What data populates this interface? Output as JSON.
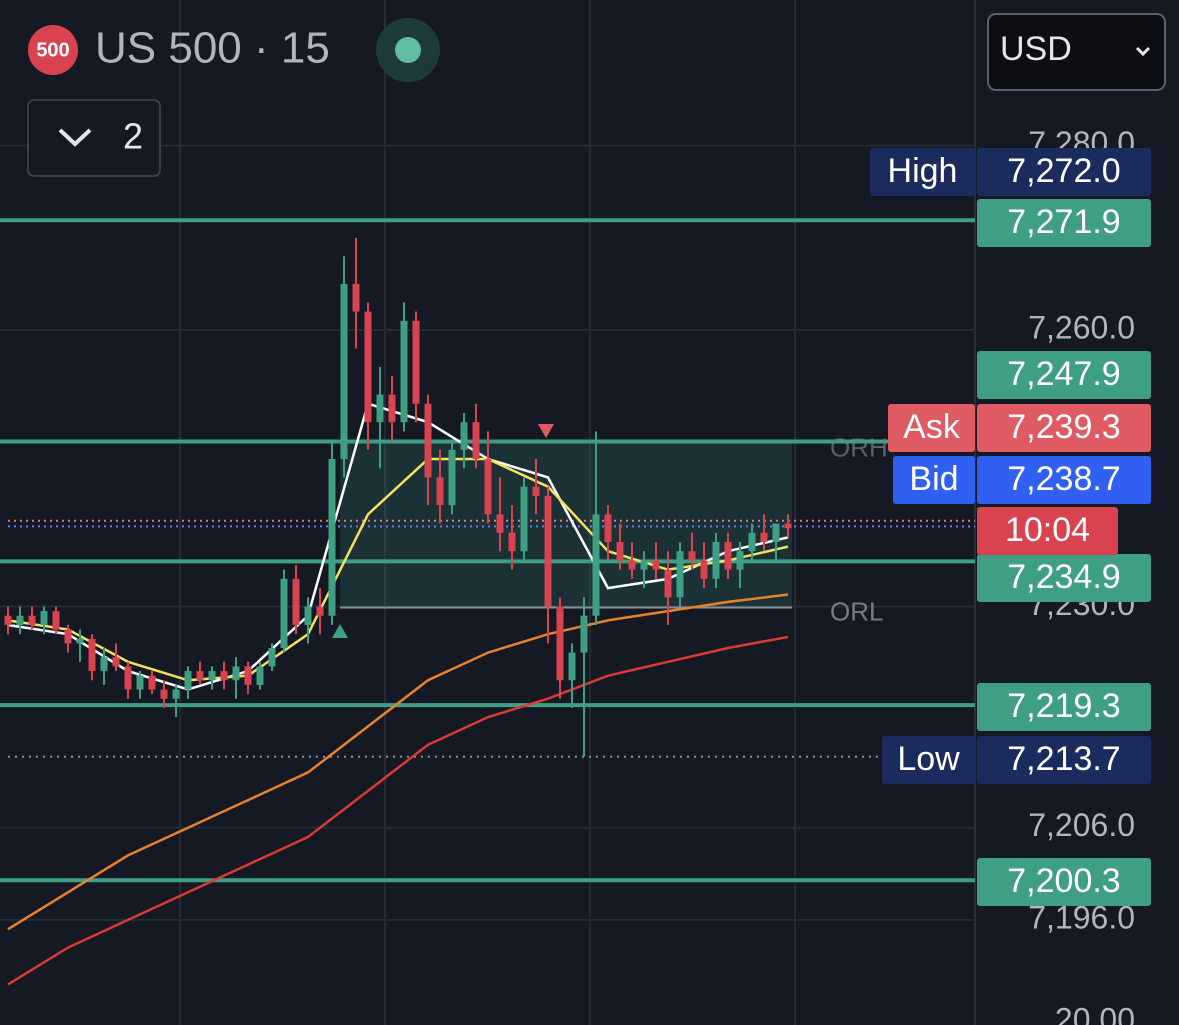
{
  "header": {
    "badge": "500",
    "symbol": "US 500 · 15",
    "currency": "USD",
    "collapse_count": "2"
  },
  "chart_data": {
    "type": "candlestick",
    "ylim": [
      7184.6,
      7295.8
    ],
    "yticks": [
      {
        "value": 7280,
        "label": "7,280.0"
      },
      {
        "value": 7260,
        "label": "7,260.0"
      },
      {
        "value": 7230,
        "label": "7,230.0"
      },
      {
        "value": 7206,
        "label": "7,206.0"
      },
      {
        "value": 7196,
        "label": "7,196.0"
      }
    ],
    "indicator_tick": "20.00",
    "grid": true,
    "up_color": "#3f9f84",
    "down_color": "#d9434f",
    "candles": [
      [
        7229,
        7230,
        7227,
        7228
      ],
      [
        7228,
        7230,
        7227,
        7229
      ],
      [
        7229,
        7230,
        7227.5,
        7228
      ],
      [
        7228,
        7230,
        7227,
        7229.5
      ],
      [
        7229.5,
        7230,
        7227,
        7227.5
      ],
      [
        7227.5,
        7228,
        7225,
        7226
      ],
      [
        7226,
        7227.5,
        7224,
        7226.5
      ],
      [
        7226.5,
        7227,
        7222,
        7223
      ],
      [
        7223,
        7225.5,
        7221.5,
        7224.5
      ],
      [
        7224.5,
        7226,
        7223,
        7223.5
      ],
      [
        7223.5,
        7224,
        7220,
        7221
      ],
      [
        7221,
        7223,
        7220,
        7222.5
      ],
      [
        7222.5,
        7223,
        7220.5,
        7221
      ],
      [
        7221,
        7222,
        7219,
        7220
      ],
      [
        7220,
        7221.5,
        7218,
        7221
      ],
      [
        7221,
        7223.5,
        7220,
        7223
      ],
      [
        7223,
        7224,
        7221.5,
        7222
      ],
      [
        7222,
        7223.5,
        7221,
        7223
      ],
      [
        7223,
        7224,
        7221,
        7222
      ],
      [
        7222,
        7224.5,
        7220,
        7223.5
      ],
      [
        7223.5,
        7224,
        7220.5,
        7221.5
      ],
      [
        7221.5,
        7224,
        7221,
        7223.5
      ],
      [
        7223.5,
        7226,
        7223,
        7225.5
      ],
      [
        7225.5,
        7234,
        7225,
        7233
      ],
      [
        7233,
        7234.5,
        7227,
        7228
      ],
      [
        7228,
        7231,
        7226,
        7230
      ],
      [
        7230,
        7232,
        7227,
        7229
      ],
      [
        7229,
        7248,
        7228,
        7246
      ],
      [
        7246,
        7268,
        7244,
        7265
      ],
      [
        7265,
        7270,
        7258,
        7262
      ],
      [
        7262,
        7263,
        7247,
        7250
      ],
      [
        7250,
        7256,
        7245,
        7253
      ],
      [
        7253,
        7255,
        7248,
        7250
      ],
      [
        7250,
        7263,
        7249,
        7261
      ],
      [
        7261,
        7262,
        7250,
        7252
      ],
      [
        7252,
        7253,
        7241,
        7244
      ],
      [
        7244,
        7247,
        7239,
        7241
      ],
      [
        7241,
        7248,
        7240,
        7247
      ],
      [
        7247,
        7251,
        7245,
        7250
      ],
      [
        7250,
        7252,
        7245,
        7246
      ],
      [
        7246,
        7249,
        7239,
        7240
      ],
      [
        7240,
        7244,
        7236,
        7238
      ],
      [
        7238,
        7241,
        7234,
        7236
      ],
      [
        7236,
        7244,
        7235,
        7243
      ],
      [
        7243,
        7246,
        7240,
        7242
      ],
      [
        7242,
        7243,
        7226,
        7230
      ],
      [
        7230,
        7231,
        7220,
        7222
      ],
      [
        7222,
        7226,
        7219,
        7225
      ],
      [
        7225,
        7231,
        7213.7,
        7229
      ],
      [
        7229,
        7249,
        7228,
        7240
      ],
      [
        7240,
        7241,
        7235,
        7237
      ],
      [
        7237,
        7239,
        7234,
        7235
      ],
      [
        7235,
        7237,
        7233,
        7234
      ],
      [
        7234,
        7236,
        7232,
        7235
      ],
      [
        7235,
        7237,
        7233,
        7234
      ],
      [
        7234,
        7236,
        7228,
        7231
      ],
      [
        7231,
        7237,
        7230,
        7236
      ],
      [
        7236,
        7238,
        7234,
        7235
      ],
      [
        7235,
        7237,
        7232,
        7233
      ],
      [
        7233,
        7238,
        7232,
        7237
      ],
      [
        7237,
        7238,
        7233,
        7234
      ],
      [
        7234,
        7237,
        7232,
        7236
      ],
      [
        7236,
        7239,
        7235,
        7238
      ],
      [
        7238,
        7240,
        7236,
        7237
      ],
      [
        7237,
        7239,
        7235,
        7239
      ],
      [
        7239,
        7240,
        7237.5,
        7238.5
      ]
    ],
    "ma_x": [
      0,
      5,
      10,
      15,
      20,
      25,
      30,
      35,
      40,
      45,
      50,
      55,
      60,
      65
    ],
    "moving_averages": [
      {
        "color": "#ffffff",
        "values": [
          7228,
          7227,
          7223,
          7221,
          7223,
          7229,
          7252,
          7250,
          7246,
          7244,
          7232,
          7233,
          7236,
          7237.5
        ]
      },
      {
        "color": "#f2e35c",
        "values": [
          7228.5,
          7227.5,
          7224,
          7222,
          7222.5,
          7227,
          7240,
          7246,
          7246,
          7243,
          7236,
          7234,
          7235,
          7236.5
        ]
      },
      {
        "color": "#e8812c",
        "values": [
          7195,
          7199,
          7203,
          7206,
          7209,
          7212,
          7217,
          7222,
          7225,
          7227,
          7228.5,
          7229.5,
          7230.5,
          7231.3
        ]
      },
      {
        "color": "#d93a35",
        "values": [
          7189,
          7193,
          7196,
          7199,
          7202,
          7205,
          7210,
          7215,
          7218,
          7220,
          7222.5,
          7224,
          7225.5,
          7226.7
        ]
      }
    ],
    "opening_range": {
      "high_label": "ORH",
      "low_label": "ORL",
      "high": 7247.9,
      "low": 7229.9
    },
    "price_lines": [
      {
        "value": 7271.9,
        "label": "7,271.9"
      },
      {
        "value": 7247.9,
        "label": "7,247.9"
      },
      {
        "value": 7234.9,
        "label": "7,234.9"
      },
      {
        "value": 7219.3,
        "label": "7,219.3"
      },
      {
        "value": 7200.3,
        "label": "7,200.3"
      }
    ],
    "high": {
      "name": "High",
      "value": 7272.0,
      "label": "7,272.0"
    },
    "low": {
      "name": "Low",
      "value": 7213.7,
      "label": "7,213.7"
    },
    "ask": {
      "name": "Ask",
      "value": 7239.3,
      "label": "7,239.3"
    },
    "bid": {
      "name": "Bid",
      "value": 7238.7,
      "label": "7,238.7"
    },
    "countdown": "10:04"
  }
}
